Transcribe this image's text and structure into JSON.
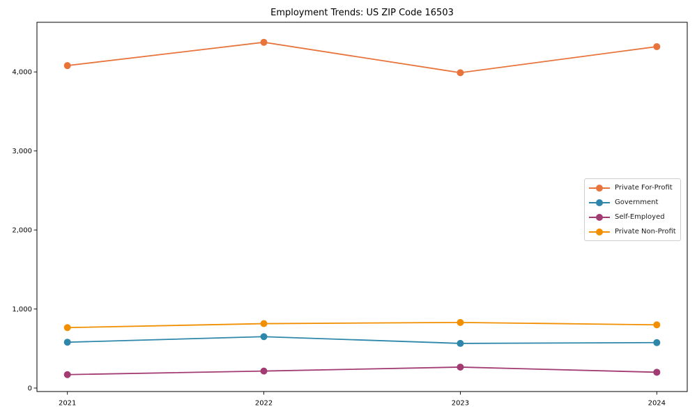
{
  "chart_data": {
    "type": "line",
    "title": "Employment Trends: US ZIP Code 16503",
    "x": [
      2021,
      2022,
      2023,
      2024
    ],
    "xtick_labels": [
      "2021",
      "2022",
      "2023",
      "2024"
    ],
    "series": [
      {
        "name": "Private For-Profit",
        "color": "#E8743B",
        "values": [
          4080,
          4375,
          3990,
          4320
        ]
      },
      {
        "name": "Government",
        "color": "#2E86AB",
        "values": [
          580,
          650,
          565,
          575
        ]
      },
      {
        "name": "Self-Employed",
        "color": "#A23B72",
        "values": [
          170,
          215,
          265,
          200
        ]
      },
      {
        "name": "Private Non-Profit",
        "color": "#F18F01",
        "values": [
          765,
          815,
          830,
          800
        ]
      }
    ],
    "yticks": [
      0,
      1000,
      2000,
      3000,
      4000
    ],
    "ytick_labels": [
      "0",
      "1,000",
      "2,000",
      "3,000",
      "4,000"
    ],
    "xlabel": "",
    "ylabel": "",
    "xlim": [
      2020.845,
      2024.155
    ],
    "ylim": [
      -44,
      4628
    ],
    "grid": false,
    "marker": "circle",
    "line_width": 1.8,
    "marker_radius": 5,
    "legend": {
      "position": "center-right",
      "entries": [
        "Private For-Profit",
        "Government",
        "Self-Employed",
        "Private Non-Profit"
      ]
    }
  }
}
